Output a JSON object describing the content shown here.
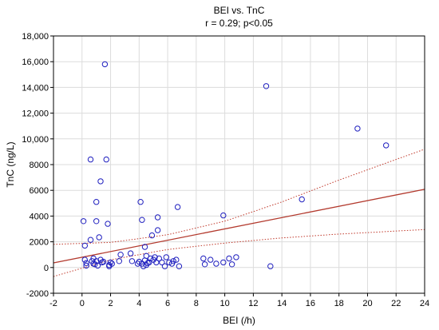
{
  "chart_data": {
    "type": "scatter",
    "title": "BEI vs. TnC",
    "subtitle": "r = 0.29; p<0.05",
    "xlabel": "BEI (/h)",
    "ylabel": "TnC (ng/L)",
    "xlim": [
      -2,
      24
    ],
    "ylim": [
      -2000,
      18000
    ],
    "x_ticks": [
      -2,
      0,
      2,
      4,
      6,
      8,
      10,
      12,
      14,
      16,
      18,
      20,
      22,
      24
    ],
    "y_ticks": [
      -2000,
      0,
      2000,
      4000,
      6000,
      8000,
      10000,
      12000,
      14000,
      16000,
      18000
    ],
    "y_tick_labels": [
      "-2000",
      "0",
      "2000",
      "4000",
      "6000",
      "8000",
      "10,000",
      "12,000",
      "14,000",
      "16,000",
      "18,000"
    ],
    "grid": true,
    "point_color": "#1f1fbf",
    "line_color": "#b33a2e",
    "ci_color": "#c0392b",
    "regression": {
      "intercept": 800,
      "slope": 220
    },
    "ci_lower": [
      [
        -2,
        -700
      ],
      [
        2,
        600
      ],
      [
        6,
        1400
      ],
      [
        10,
        1900
      ],
      [
        14,
        2300
      ],
      [
        18,
        2600
      ],
      [
        24,
        2950
      ]
    ],
    "ci_upper": [
      [
        -2,
        1800
      ],
      [
        2,
        1950
      ],
      [
        6,
        2550
      ],
      [
        10,
        3600
      ],
      [
        14,
        5100
      ],
      [
        18,
        6800
      ],
      [
        24,
        9200
      ]
    ],
    "points": [
      [
        0.1,
        3600
      ],
      [
        0.2,
        1700
      ],
      [
        0.2,
        600
      ],
      [
        0.3,
        350
      ],
      [
        0.3,
        150
      ],
      [
        0.6,
        2150
      ],
      [
        0.6,
        8400
      ],
      [
        0.7,
        500
      ],
      [
        0.8,
        300
      ],
      [
        0.8,
        700
      ],
      [
        0.9,
        250
      ],
      [
        1.0,
        3600
      ],
      [
        1.0,
        5100
      ],
      [
        1.0,
        500
      ],
      [
        1.1,
        150
      ],
      [
        1.2,
        2350
      ],
      [
        1.3,
        600
      ],
      [
        1.3,
        6700
      ],
      [
        1.4,
        400
      ],
      [
        1.5,
        450
      ],
      [
        1.6,
        15800
      ],
      [
        1.7,
        8400
      ],
      [
        1.8,
        3400
      ],
      [
        1.9,
        200
      ],
      [
        1.9,
        100
      ],
      [
        2.0,
        400
      ],
      [
        2.1,
        300
      ],
      [
        2.6,
        500
      ],
      [
        2.7,
        1000
      ],
      [
        3.4,
        1100
      ],
      [
        3.5,
        500
      ],
      [
        3.9,
        300
      ],
      [
        4.0,
        450
      ],
      [
        4.1,
        5100
      ],
      [
        4.2,
        3700
      ],
      [
        4.2,
        300
      ],
      [
        4.3,
        100
      ],
      [
        4.4,
        1600
      ],
      [
        4.4,
        550
      ],
      [
        4.5,
        200
      ],
      [
        4.5,
        900
      ],
      [
        4.6,
        350
      ],
      [
        4.7,
        400
      ],
      [
        4.8,
        700
      ],
      [
        4.9,
        2500
      ],
      [
        5.0,
        600
      ],
      [
        5.1,
        800
      ],
      [
        5.2,
        400
      ],
      [
        5.3,
        3900
      ],
      [
        5.3,
        2900
      ],
      [
        5.4,
        700
      ],
      [
        5.6,
        400
      ],
      [
        5.8,
        100
      ],
      [
        5.9,
        800
      ],
      [
        6.1,
        400
      ],
      [
        6.3,
        300
      ],
      [
        6.4,
        500
      ],
      [
        6.6,
        600
      ],
      [
        6.7,
        4700
      ],
      [
        6.8,
        100
      ],
      [
        8.5,
        700
      ],
      [
        8.6,
        250
      ],
      [
        9.0,
        600
      ],
      [
        9.4,
        300
      ],
      [
        9.9,
        4050
      ],
      [
        9.9,
        400
      ],
      [
        10.3,
        700
      ],
      [
        10.5,
        250
      ],
      [
        10.8,
        800
      ],
      [
        12.9,
        14100
      ],
      [
        13.2,
        100
      ],
      [
        15.4,
        5300
      ],
      [
        19.3,
        10800
      ],
      [
        21.3,
        9500
      ]
    ]
  }
}
